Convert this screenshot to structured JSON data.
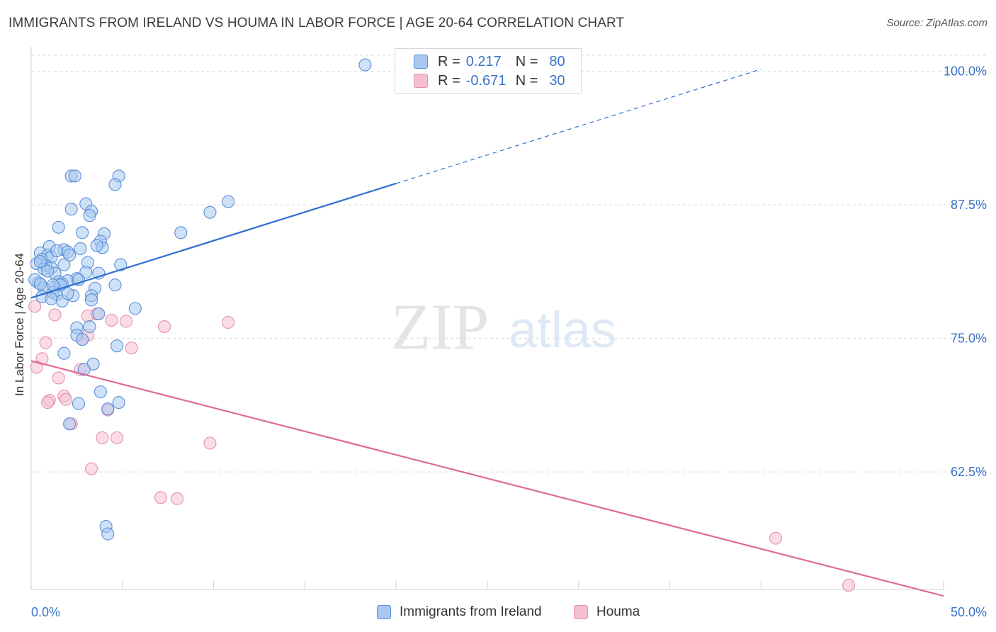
{
  "title": "IMMIGRANTS FROM IRELAND VS HOUMA IN LABOR FORCE | AGE 20-64 CORRELATION CHART",
  "source": "Source: ZipAtlas.com",
  "watermark": {
    "zip": "ZIP",
    "atlas": "atlas"
  },
  "colors": {
    "blue_fill": "#a8c8f0",
    "blue_stroke": "#5b90d8",
    "blue_line": "#2f6fcf",
    "pink_fill": "#f5bfd0",
    "pink_stroke": "#e590ae",
    "pink_line": "#e0689a",
    "axis_label": "#3a73c8",
    "grid": "#d9d9d9"
  },
  "legend": {
    "rows": [
      {
        "r_label": "R =",
        "r_value": "0.217",
        "n_label": "N =",
        "n_value": "80"
      },
      {
        "r_label": "R =",
        "r_value": "-0.671",
        "n_label": "N =",
        "n_value": "30"
      }
    ]
  },
  "bottom_legend": [
    {
      "label": "Immigrants from Ireland"
    },
    {
      "label": "Houma"
    }
  ],
  "chart_data": {
    "type": "scatter",
    "ylabel": "In Labor Force | Age 20-64",
    "xlim": [
      0,
      50
    ],
    "ylim": [
      51.5,
      101.5
    ],
    "x_tick_labels": [
      "0.0%",
      "50.0%"
    ],
    "y_ticks": [
      62.5,
      75.0,
      87.5,
      100.0
    ],
    "y_tick_labels": [
      "62.5%",
      "75.0%",
      "87.5%",
      "100.0%"
    ],
    "grid": true,
    "series": [
      {
        "name": "Immigrants from Ireland",
        "color": "blue",
        "points": [
          [
            18.3,
            100.6
          ],
          [
            2.2,
            90.2
          ],
          [
            2.4,
            90.2
          ],
          [
            4.8,
            90.2
          ],
          [
            4.6,
            89.4
          ],
          [
            10.8,
            87.8
          ],
          [
            9.8,
            86.8
          ],
          [
            2.2,
            87.1
          ],
          [
            3.0,
            87.6
          ],
          [
            3.3,
            86.9
          ],
          [
            3.2,
            86.5
          ],
          [
            1.5,
            85.4
          ],
          [
            2.8,
            84.9
          ],
          [
            4.0,
            84.8
          ],
          [
            8.2,
            84.9
          ],
          [
            3.8,
            84.1
          ],
          [
            1.0,
            83.6
          ],
          [
            1.8,
            83.3
          ],
          [
            2.0,
            83.1
          ],
          [
            2.7,
            83.4
          ],
          [
            3.9,
            83.5
          ],
          [
            0.5,
            83.0
          ],
          [
            0.9,
            82.8
          ],
          [
            0.6,
            82.4
          ],
          [
            1.1,
            82.6
          ],
          [
            2.1,
            82.8
          ],
          [
            0.3,
            82.0
          ],
          [
            0.8,
            81.8
          ],
          [
            1.8,
            81.9
          ],
          [
            3.1,
            82.1
          ],
          [
            4.9,
            81.9
          ],
          [
            1.1,
            81.6
          ],
          [
            0.7,
            81.5
          ],
          [
            3.0,
            81.2
          ],
          [
            3.7,
            81.1
          ],
          [
            1.3,
            81.1
          ],
          [
            2.5,
            80.6
          ],
          [
            1.5,
            80.3
          ],
          [
            2.0,
            80.4
          ],
          [
            1.7,
            80.1
          ],
          [
            0.4,
            80.2
          ],
          [
            0.7,
            79.7
          ],
          [
            1.3,
            79.8
          ],
          [
            3.5,
            79.7
          ],
          [
            4.6,
            80.0
          ],
          [
            1.2,
            79.3
          ],
          [
            1.4,
            79.1
          ],
          [
            2.3,
            79.0
          ],
          [
            3.3,
            79.0
          ],
          [
            0.6,
            78.9
          ],
          [
            1.1,
            78.7
          ],
          [
            1.7,
            78.5
          ],
          [
            3.3,
            78.6
          ],
          [
            5.7,
            77.8
          ],
          [
            3.7,
            77.3
          ],
          [
            3.2,
            76.1
          ],
          [
            2.5,
            76.0
          ],
          [
            2.5,
            75.3
          ],
          [
            2.8,
            74.9
          ],
          [
            4.7,
            74.3
          ],
          [
            1.8,
            73.6
          ],
          [
            3.4,
            72.6
          ],
          [
            2.9,
            72.1
          ],
          [
            3.8,
            70.0
          ],
          [
            4.8,
            69.0
          ],
          [
            2.6,
            68.9
          ],
          [
            4.2,
            68.4
          ],
          [
            2.1,
            67.0
          ],
          [
            4.1,
            57.4
          ],
          [
            4.2,
            56.7
          ],
          [
            0.5,
            82.2
          ],
          [
            1.6,
            80.0
          ],
          [
            0.2,
            80.5
          ],
          [
            2.0,
            79.2
          ],
          [
            0.9,
            81.3
          ],
          [
            3.6,
            83.7
          ],
          [
            1.4,
            83.2
          ],
          [
            2.6,
            80.5
          ],
          [
            0.5,
            80.1
          ],
          [
            1.2,
            80.0
          ]
        ]
      },
      {
        "name": "Houma",
        "color": "pink",
        "points": [
          [
            0.2,
            78.0
          ],
          [
            1.3,
            77.2
          ],
          [
            3.1,
            77.1
          ],
          [
            3.6,
            77.3
          ],
          [
            4.4,
            76.7
          ],
          [
            5.2,
            76.6
          ],
          [
            7.3,
            76.1
          ],
          [
            10.8,
            76.5
          ],
          [
            3.1,
            75.3
          ],
          [
            2.8,
            74.9
          ],
          [
            0.8,
            74.6
          ],
          [
            5.5,
            74.1
          ],
          [
            0.6,
            73.1
          ],
          [
            0.3,
            72.3
          ],
          [
            2.7,
            72.1
          ],
          [
            1.5,
            71.3
          ],
          [
            1.8,
            69.6
          ],
          [
            1.0,
            69.2
          ],
          [
            1.9,
            69.3
          ],
          [
            0.9,
            69.0
          ],
          [
            2.2,
            67.0
          ],
          [
            4.2,
            68.3
          ],
          [
            3.9,
            65.7
          ],
          [
            4.7,
            65.7
          ],
          [
            9.8,
            65.2
          ],
          [
            3.3,
            62.8
          ],
          [
            7.1,
            60.1
          ],
          [
            8.0,
            60.0
          ],
          [
            40.8,
            56.3
          ],
          [
            44.8,
            51.9
          ]
        ]
      }
    ],
    "trendlines": [
      {
        "series": "Immigrants from Ireland",
        "x0": 0.0,
        "y0": 78.8,
        "x_solid_end": 20.0,
        "x1": 40.0,
        "y1": 100.2
      },
      {
        "series": "Houma",
        "x0": 0.0,
        "y0": 72.9,
        "x1": 50.0,
        "y1": 50.9
      }
    ]
  }
}
